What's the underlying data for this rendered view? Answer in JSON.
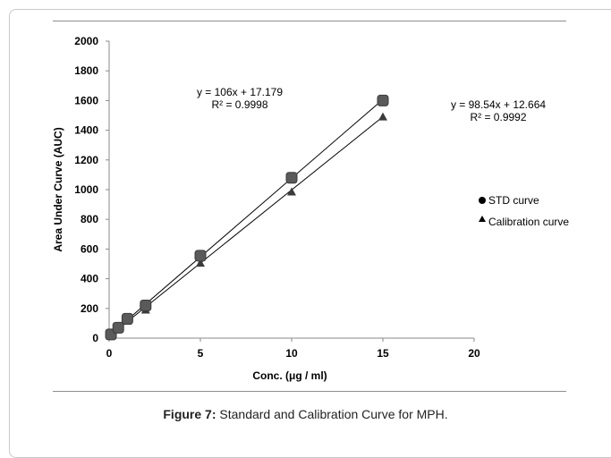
{
  "caption": {
    "label": "Figure 7:",
    "text": " Standard and Calibration Curve for MPH."
  },
  "chart_data": {
    "type": "scatter",
    "title": "",
    "xlabel": "Conc. (μg / ml)",
    "ylabel": "Area Under Curve (AUC)",
    "xlim": [
      0,
      20
    ],
    "ylim": [
      0,
      2000
    ],
    "xticks": [
      0,
      5,
      10,
      15,
      20
    ],
    "yticks": [
      0,
      200,
      400,
      600,
      800,
      1000,
      1200,
      1400,
      1600,
      1800,
      2000
    ],
    "grid": false,
    "legend_position": "right",
    "series": [
      {
        "name": "STD curve",
        "marker": "circle",
        "x": [
          0.1,
          0.5,
          1,
          2,
          5,
          10,
          15
        ],
        "y": [
          25,
          70,
          130,
          220,
          555,
          1080,
          1600
        ],
        "trendline": {
          "slope": 106,
          "intercept": 17.179,
          "equation": "y = 106x + 17.179",
          "r2": "R² = 0.9998"
        }
      },
      {
        "name": "Calibration curve",
        "marker": "triangle",
        "x": [
          0.1,
          0.5,
          1,
          2,
          5,
          10,
          15
        ],
        "y": [
          20,
          60,
          115,
          190,
          505,
          985,
          1490
        ],
        "trendline": {
          "slope": 98.54,
          "intercept": 12.664,
          "equation": "y = 98.54x + 12.664",
          "r2": "R² = 0.9992"
        }
      }
    ]
  }
}
